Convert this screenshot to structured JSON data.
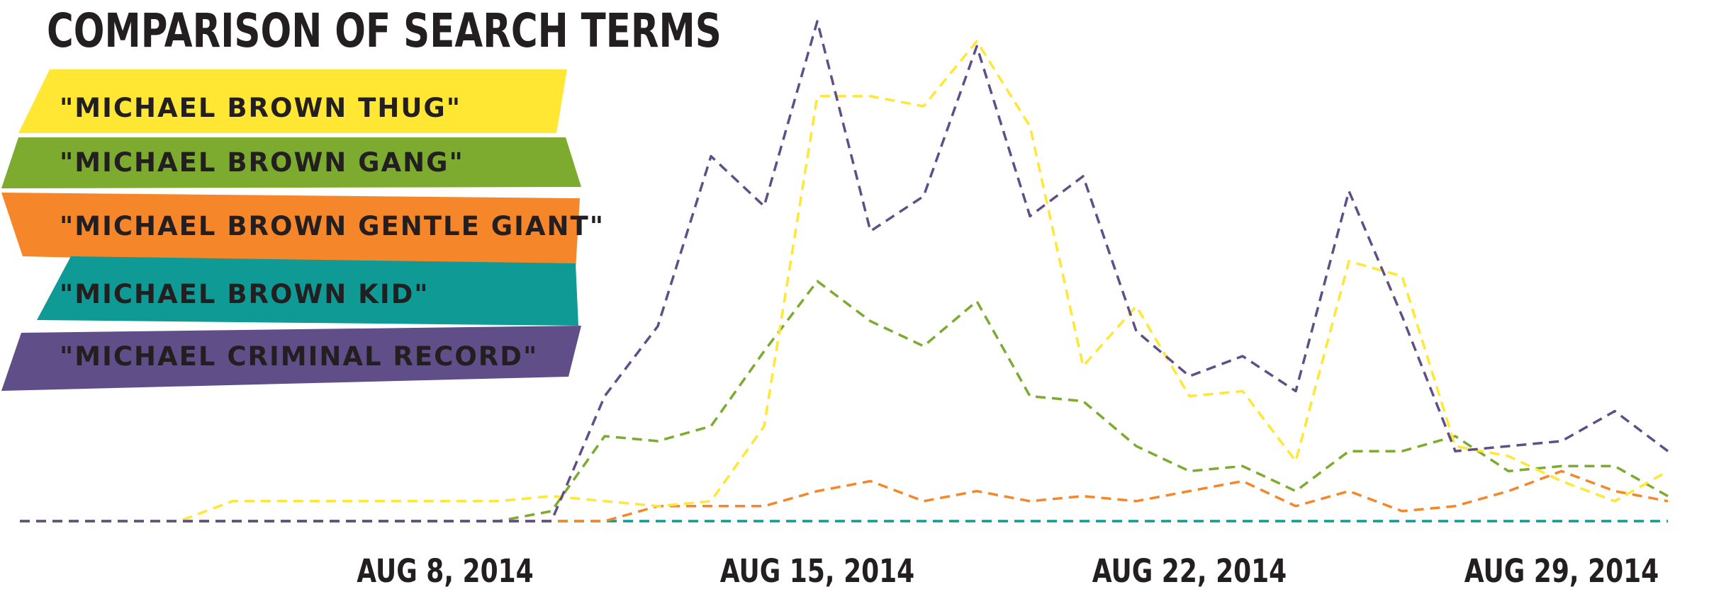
{
  "chart_data": {
    "type": "line",
    "title": "COMPARISON OF SEARCH TERMS",
    "xlabel": "",
    "ylabel": "",
    "x_tick_labels": [
      "AUG 8, 2014",
      "AUG 15, 2014",
      "AUG 22, 2014",
      "AUG 29, 2014"
    ],
    "x_start": "2014-07-31",
    "x_end": "2014-09-01",
    "ylim": [
      0,
      100
    ],
    "grid": false,
    "legend_position": "left",
    "series": [
      {
        "name": "\"MICHAEL BROWN THUG\"",
        "color": "#ffe734",
        "points": [
          [
            "2014-07-31",
            0
          ],
          [
            "2014-08-01",
            0
          ],
          [
            "2014-08-02",
            0
          ],
          [
            "2014-08-03",
            0
          ],
          [
            "2014-08-04",
            4
          ],
          [
            "2014-08-05",
            4
          ],
          [
            "2014-08-06",
            4
          ],
          [
            "2014-08-07",
            4
          ],
          [
            "2014-08-08",
            4
          ],
          [
            "2014-08-09",
            4
          ],
          [
            "2014-08-10",
            5
          ],
          [
            "2014-08-11",
            4
          ],
          [
            "2014-08-12",
            3
          ],
          [
            "2014-08-13",
            4
          ],
          [
            "2014-08-14",
            19
          ],
          [
            "2014-08-15",
            85
          ],
          [
            "2014-08-16",
            85
          ],
          [
            "2014-08-17",
            83
          ],
          [
            "2014-08-18",
            96
          ],
          [
            "2014-08-19",
            79
          ],
          [
            "2014-08-20",
            31
          ],
          [
            "2014-08-21",
            43
          ],
          [
            "2014-08-22",
            25
          ],
          [
            "2014-08-23",
            26
          ],
          [
            "2014-08-24",
            12
          ],
          [
            "2014-08-25",
            52
          ],
          [
            "2014-08-26",
            49
          ],
          [
            "2014-08-27",
            15
          ],
          [
            "2014-08-28",
            13
          ],
          [
            "2014-08-29",
            8
          ],
          [
            "2014-08-30",
            4
          ],
          [
            "2014-08-31",
            10
          ]
        ]
      },
      {
        "name": "\"MICHAEL BROWN GANG\"",
        "color": "#7cab2f",
        "points": [
          [
            "2014-07-31",
            0
          ],
          [
            "2014-08-01",
            0
          ],
          [
            "2014-08-02",
            0
          ],
          [
            "2014-08-03",
            0
          ],
          [
            "2014-08-04",
            0
          ],
          [
            "2014-08-05",
            0
          ],
          [
            "2014-08-06",
            0
          ],
          [
            "2014-08-07",
            0
          ],
          [
            "2014-08-08",
            0
          ],
          [
            "2014-08-09",
            0
          ],
          [
            "2014-08-10",
            2
          ],
          [
            "2014-08-11",
            17
          ],
          [
            "2014-08-12",
            16
          ],
          [
            "2014-08-13",
            19
          ],
          [
            "2014-08-14",
            34
          ],
          [
            "2014-08-15",
            48
          ],
          [
            "2014-08-16",
            40
          ],
          [
            "2014-08-17",
            35
          ],
          [
            "2014-08-18",
            44
          ],
          [
            "2014-08-19",
            25
          ],
          [
            "2014-08-20",
            24
          ],
          [
            "2014-08-21",
            15
          ],
          [
            "2014-08-22",
            10
          ],
          [
            "2014-08-23",
            11
          ],
          [
            "2014-08-24",
            6
          ],
          [
            "2014-08-25",
            14
          ],
          [
            "2014-08-26",
            14
          ],
          [
            "2014-08-27",
            17
          ],
          [
            "2014-08-28",
            10
          ],
          [
            "2014-08-29",
            11
          ],
          [
            "2014-08-30",
            11
          ],
          [
            "2014-08-31",
            5
          ]
        ]
      },
      {
        "name": "\"MICHAEL BROWN GENTLE GIANT\"",
        "color": "#f5862a",
        "points": [
          [
            "2014-07-31",
            0
          ],
          [
            "2014-08-01",
            0
          ],
          [
            "2014-08-02",
            0
          ],
          [
            "2014-08-03",
            0
          ],
          [
            "2014-08-04",
            0
          ],
          [
            "2014-08-05",
            0
          ],
          [
            "2014-08-06",
            0
          ],
          [
            "2014-08-07",
            0
          ],
          [
            "2014-08-08",
            0
          ],
          [
            "2014-08-09",
            0
          ],
          [
            "2014-08-10",
            0
          ],
          [
            "2014-08-11",
            0
          ],
          [
            "2014-08-12",
            3
          ],
          [
            "2014-08-13",
            3
          ],
          [
            "2014-08-14",
            3
          ],
          [
            "2014-08-15",
            6
          ],
          [
            "2014-08-16",
            8
          ],
          [
            "2014-08-17",
            4
          ],
          [
            "2014-08-18",
            6
          ],
          [
            "2014-08-19",
            4
          ],
          [
            "2014-08-20",
            5
          ],
          [
            "2014-08-21",
            4
          ],
          [
            "2014-08-22",
            6
          ],
          [
            "2014-08-23",
            8
          ],
          [
            "2014-08-24",
            3
          ],
          [
            "2014-08-25",
            6
          ],
          [
            "2014-08-26",
            2
          ],
          [
            "2014-08-27",
            3
          ],
          [
            "2014-08-28",
            6
          ],
          [
            "2014-08-29",
            10
          ],
          [
            "2014-08-30",
            6
          ],
          [
            "2014-08-31",
            4
          ]
        ]
      },
      {
        "name": "\"MICHAEL BROWN KID\"",
        "color": "#109a96",
        "points": [
          [
            "2014-07-31",
            0
          ],
          [
            "2014-08-01",
            0
          ],
          [
            "2014-08-02",
            0
          ],
          [
            "2014-08-03",
            0
          ],
          [
            "2014-08-04",
            0
          ],
          [
            "2014-08-05",
            0
          ],
          [
            "2014-08-06",
            0
          ],
          [
            "2014-08-07",
            0
          ],
          [
            "2014-08-08",
            0
          ],
          [
            "2014-08-09",
            0
          ],
          [
            "2014-08-10",
            0
          ],
          [
            "2014-08-11",
            0
          ],
          [
            "2014-08-12",
            0
          ],
          [
            "2014-08-13",
            0
          ],
          [
            "2014-08-14",
            0
          ],
          [
            "2014-08-15",
            0
          ],
          [
            "2014-08-16",
            0
          ],
          [
            "2014-08-17",
            0
          ],
          [
            "2014-08-18",
            0
          ],
          [
            "2014-08-19",
            0
          ],
          [
            "2014-08-20",
            0
          ],
          [
            "2014-08-21",
            0
          ],
          [
            "2014-08-22",
            0
          ],
          [
            "2014-08-23",
            0
          ],
          [
            "2014-08-24",
            0
          ],
          [
            "2014-08-25",
            0
          ],
          [
            "2014-08-26",
            0
          ],
          [
            "2014-08-27",
            0
          ],
          [
            "2014-08-28",
            0
          ],
          [
            "2014-08-29",
            0
          ],
          [
            "2014-08-30",
            0
          ],
          [
            "2014-08-31",
            0
          ]
        ]
      },
      {
        "name": "\"MICHAEL CRIMINAL RECORD\"",
        "color": "#5f4e88",
        "points": [
          [
            "2014-07-31",
            0
          ],
          [
            "2014-08-01",
            0
          ],
          [
            "2014-08-02",
            0
          ],
          [
            "2014-08-03",
            0
          ],
          [
            "2014-08-04",
            0
          ],
          [
            "2014-08-05",
            0
          ],
          [
            "2014-08-06",
            0
          ],
          [
            "2014-08-07",
            0
          ],
          [
            "2014-08-08",
            0
          ],
          [
            "2014-08-09",
            0
          ],
          [
            "2014-08-10",
            0
          ],
          [
            "2014-08-11",
            25
          ],
          [
            "2014-08-12",
            39
          ],
          [
            "2014-08-13",
            73
          ],
          [
            "2014-08-14",
            63
          ],
          [
            "2014-08-15",
            100
          ],
          [
            "2014-08-16",
            58
          ],
          [
            "2014-08-17",
            65
          ],
          [
            "2014-08-18",
            95
          ],
          [
            "2014-08-19",
            61
          ],
          [
            "2014-08-20",
            69
          ],
          [
            "2014-08-21",
            38
          ],
          [
            "2014-08-22",
            29
          ],
          [
            "2014-08-23",
            33
          ],
          [
            "2014-08-24",
            26
          ],
          [
            "2014-08-25",
            66
          ],
          [
            "2014-08-26",
            41
          ],
          [
            "2014-08-27",
            14
          ],
          [
            "2014-08-28",
            15
          ],
          [
            "2014-08-29",
            16
          ],
          [
            "2014-08-30",
            22
          ],
          [
            "2014-08-31",
            14
          ]
        ]
      }
    ]
  }
}
